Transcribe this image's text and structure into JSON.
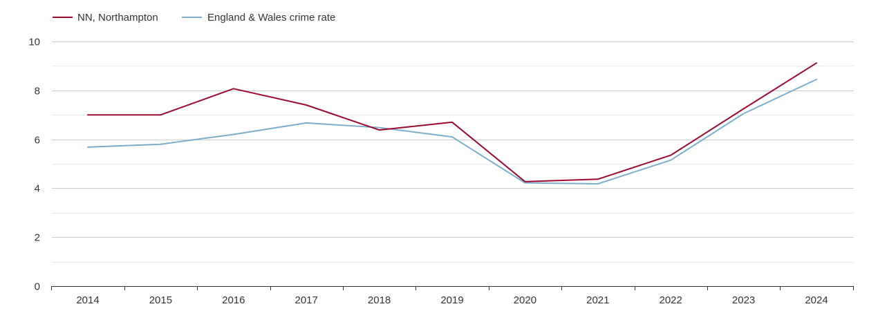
{
  "chart_data": {
    "type": "line",
    "x": [
      2014,
      2015,
      2016,
      2017,
      2018,
      2019,
      2020,
      2021,
      2022,
      2023,
      2024
    ],
    "x_tick_labels": [
      "2014",
      "2015",
      "2016",
      "2017",
      "2018",
      "2019",
      "2020",
      "2021",
      "2022",
      "2023",
      "2024"
    ],
    "y_ticks": [
      0,
      2,
      4,
      6,
      8,
      10
    ],
    "y_tick_labels": [
      "0",
      "2",
      "4",
      "6",
      "8",
      "10"
    ],
    "ylim": [
      0,
      10
    ],
    "grid": true,
    "minor_grid": true,
    "legend_position": "top-left",
    "series": [
      {
        "name": "NN, Northampton",
        "color": "#9b0a2e",
        "values": [
          7.0,
          7.0,
          8.07,
          7.4,
          6.38,
          6.7,
          4.27,
          4.37,
          5.35,
          7.25,
          9.12
        ]
      },
      {
        "name": "England & Wales crime rate",
        "color": "#7aaecc",
        "values": [
          5.68,
          5.8,
          6.2,
          6.67,
          6.48,
          6.1,
          4.22,
          4.18,
          5.15,
          7.05,
          8.45
        ]
      }
    ]
  }
}
